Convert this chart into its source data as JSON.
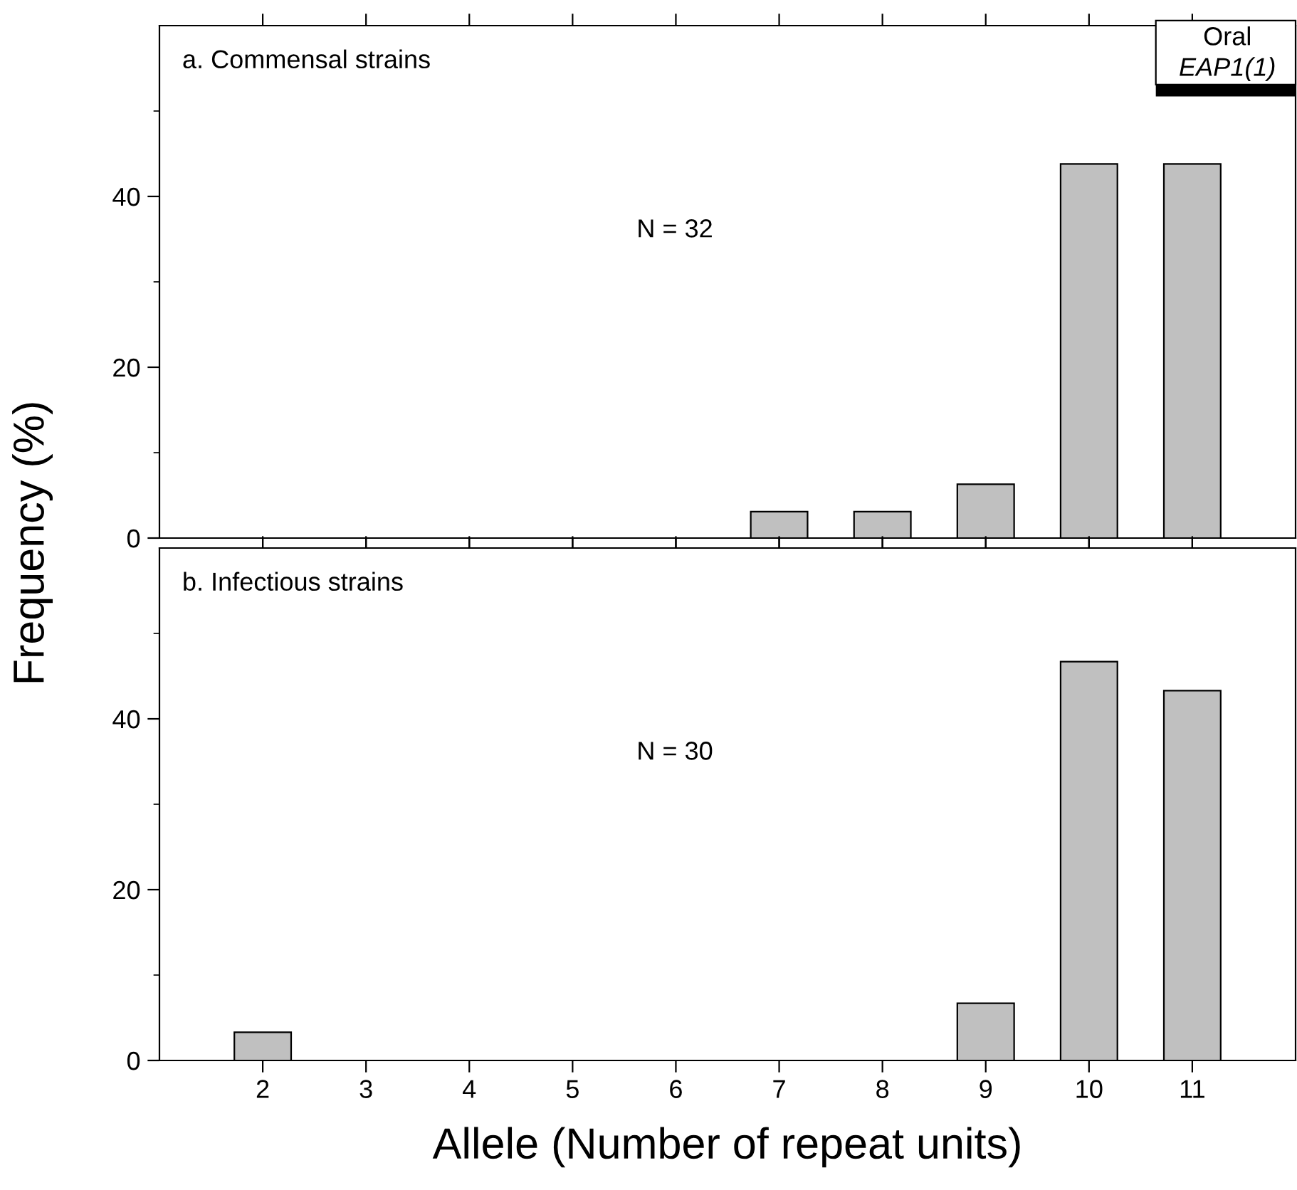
{
  "chart_data": [
    {
      "type": "bar",
      "x": [
        7,
        8,
        9,
        10,
        11
      ],
      "values": [
        3.1,
        3.1,
        6.3,
        43.8,
        43.8
      ],
      "color": "#c0c0c0",
      "xlim": [
        1,
        12
      ],
      "xticks": [
        2,
        3,
        4,
        5,
        6,
        7,
        8,
        9,
        10,
        11
      ],
      "ylim": [
        0,
        60
      ],
      "yticks": [
        0,
        20,
        40
      ],
      "tick_labels": "y",
      "ylabel": "Frequency (%)",
      "annotations": [
        "a. Commensal strains",
        "N = 32",
        "Oral",
        "EAP1(1)"
      ]
    },
    {
      "type": "bar",
      "x": [
        2,
        9,
        10,
        11
      ],
      "values": [
        3.3,
        6.7,
        46.7,
        43.3
      ],
      "color": "#c0c0c0",
      "xlim": [
        1,
        12
      ],
      "xticks": [
        2,
        3,
        4,
        5,
        6,
        7,
        8,
        9,
        10,
        11
      ],
      "ylim": [
        0,
        60
      ],
      "yticks": [
        0,
        20,
        40
      ],
      "xlabel": "Allele (Number of repeat units)",
      "annotations": [
        "b. Infectious strains",
        "N = 30"
      ]
    }
  ]
}
